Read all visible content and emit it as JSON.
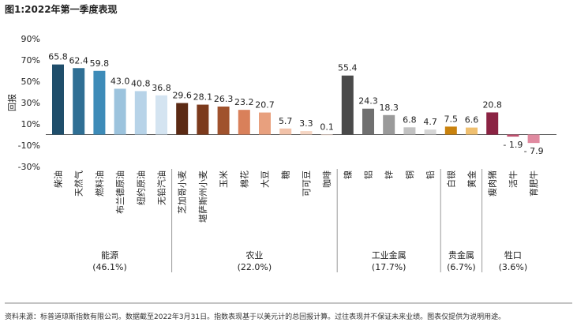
{
  "chart_data": {
    "type": "bar",
    "title": "图1:2022年第一季度表现",
    "ylabel": "回报",
    "xlabel": "",
    "ylim": [
      -30,
      90
    ],
    "yticks": [
      "90%",
      "70%",
      "50%",
      "30%",
      "10%",
      "-10%",
      "-30%"
    ],
    "ytick_values": [
      90,
      70,
      50,
      30,
      10,
      -10,
      -30
    ],
    "grid": false,
    "categories": [
      "柴油",
      "天然气",
      "燃料油",
      "布兰德原油",
      "纽约原油",
      "无铅汽油",
      "芝加哥小麦",
      "堪萨斯州小麦",
      "玉米",
      "棉花",
      "大豆",
      "糖",
      "可可豆",
      "咖啡",
      "镍",
      "铝",
      "锌",
      "铜",
      "铅",
      "白银",
      "黄金",
      "瘦肉猪",
      "活牛",
      "育肥牛"
    ],
    "values": [
      65.8,
      62.4,
      59.8,
      43.0,
      40.8,
      36.8,
      29.6,
      28.1,
      26.3,
      23.2,
      20.7,
      5.7,
      3.3,
      0.1,
      55.4,
      24.3,
      18.3,
      6.8,
      4.7,
      7.5,
      6.6,
      20.8,
      -1.9,
      -7.9
    ],
    "value_labels": [
      "65.8",
      "62.4",
      "59.8",
      "43.0",
      "40.8",
      "36.8",
      "29.6",
      "28.1",
      "26.3",
      "23.2",
      "20.7",
      "5.7",
      "3.3",
      "0.1",
      "55.4",
      "24.3",
      "18.3",
      "6.8",
      "4.7",
      "7.5",
      "6.6",
      "20.8",
      "- 1.9",
      "- 7.9"
    ],
    "colors": [
      "#1f4e6b",
      "#2f6f94",
      "#3d8bb8",
      "#9cc3dd",
      "#b7d3e8",
      "#d4e4f1",
      "#5b2a14",
      "#7c3a1c",
      "#a0522d",
      "#d9805a",
      "#e8a07e",
      "#f2c2a9",
      "#f6d6c4",
      "#f9e5d9",
      "#4a4a4a",
      "#707070",
      "#9a9a9a",
      "#c2c2c2",
      "#d6d6d6",
      "#c9820e",
      "#f0c070",
      "#8b2343",
      "#c0506e",
      "#e08aa0"
    ],
    "groups": [
      {
        "name": "能源",
        "share": "(46.1%)",
        "start": 0,
        "end": 5
      },
      {
        "name": "农业",
        "share": "(22.0%)",
        "start": 6,
        "end": 13
      },
      {
        "name": "工业金属",
        "share": "(17.7%)",
        "start": 14,
        "end": 18
      },
      {
        "name": "贵金属",
        "share": "(6.7%)",
        "start": 19,
        "end": 20
      },
      {
        "name": "牲口",
        "share": "(3.6%)",
        "start": 21,
        "end": 23
      }
    ]
  },
  "footnote": "资料来源：标普道琼斯指数有限公司。数据截至2022年3月31日。指数表现基于以美元计的总回报计算。过往表现并不保证未来业绩。图表仅提供为说明用途。"
}
